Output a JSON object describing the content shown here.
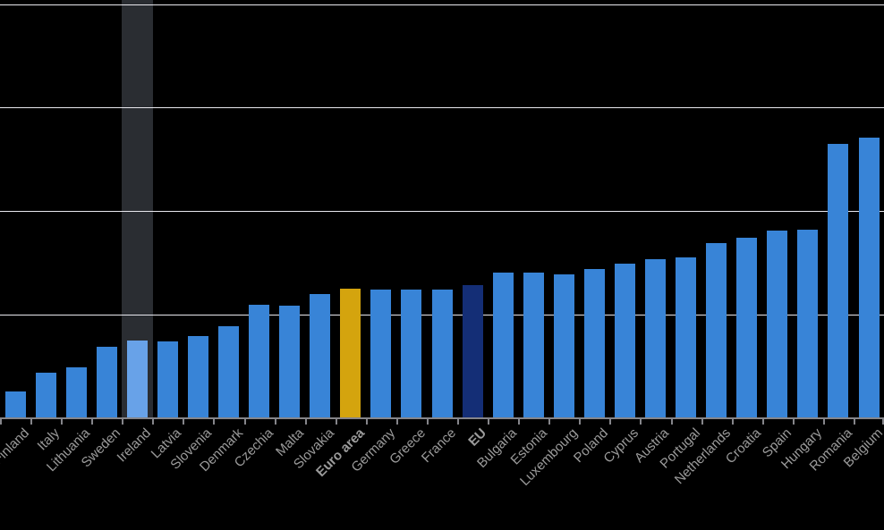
{
  "chart_data": {
    "type": "bar",
    "title": "",
    "xlabel": "",
    "ylabel": "",
    "categories": [
      "Finland",
      "Italy",
      "Lithuania",
      "Sweden",
      "Ireland",
      "Latvia",
      "Slovenia",
      "Denmark",
      "Czechia",
      "Malta",
      "Slovakia",
      "Euro area",
      "Germany",
      "Greece",
      "France",
      "EU",
      "Bulgaria",
      "Estonia",
      "Luxembourg",
      "Poland",
      "Cyprus",
      "Austria",
      "Portugal",
      "Netherlands",
      "Croatia",
      "Spain",
      "Hungary",
      "Romania",
      "Belgium"
    ],
    "values": [
      0.26,
      0.44,
      0.49,
      0.69,
      0.75,
      0.74,
      0.79,
      0.89,
      1.1,
      1.09,
      1.2,
      1.25,
      1.24,
      1.24,
      1.24,
      1.29,
      1.41,
      1.41,
      1.39,
      1.44,
      1.49,
      1.54,
      1.55,
      1.69,
      1.74,
      1.81,
      1.82,
      2.65,
      2.71
    ],
    "value_scale_note": "no y-axis tick labels visible in the screenshot; values estimated in gridline intervals (1.0 = one gridline spacing above baseline)",
    "ylim": [
      0,
      4
    ],
    "gridlines_at": [
      1,
      2,
      3,
      4
    ],
    "grid": "on",
    "legend": "none",
    "bold_categories": [
      "Euro area",
      "EU"
    ],
    "highlighted_category": "Ireland"
  },
  "colors": {
    "background": "#000000",
    "bar": "#3884d7",
    "highlight_bar": "#68a2e8",
    "euro_area_bar": "#d4a40e",
    "eu_bar": "#142e76",
    "highlight_band": "#2a2d32",
    "gridline": "#e8e8ee",
    "axis": "#85858a",
    "label": "#9b9b9b"
  }
}
